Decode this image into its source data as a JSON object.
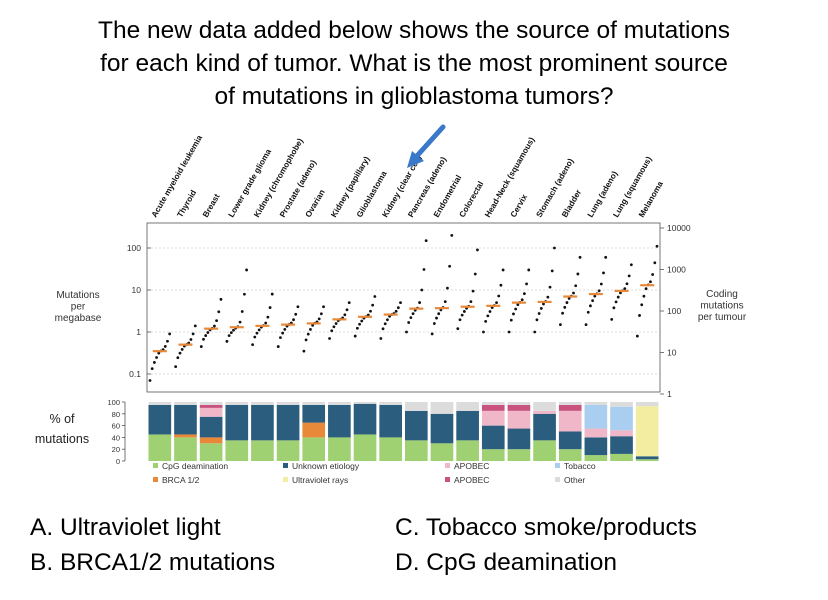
{
  "question": {
    "lines": [
      "The new data added below shows the source of mutations",
      "for each kind of tumor. What is the most prominent source",
      "of mutations in glioblastoma tumors?"
    ]
  },
  "answers": {
    "a": "A.  Ultraviolet light",
    "b": "B.  BRCA1/2 mutations",
    "c": "C. Tobacco smoke/products",
    "d": "D. CpG deamination"
  },
  "chart_data": [
    {
      "type": "scatter",
      "title": "",
      "ylabel": "Mutations per megabase",
      "ylabel_lines": [
        "Mutations",
        "per",
        "megabase"
      ],
      "y2label_lines": [
        "Coding",
        "mutations",
        "per tumour"
      ],
      "yscale": "log",
      "ylim": [
        0.05,
        250
      ],
      "yticks": [
        "100",
        "10",
        "1",
        "0.1"
      ],
      "y2ticks": [
        "10000",
        "1000",
        "100",
        "10",
        "1"
      ],
      "grid": true,
      "highlight": {
        "category": "Glioblastoma",
        "marker": "blue arrow"
      },
      "categories": [
        "Acute myeloid leukemia",
        "Thyroid",
        "Breast",
        "Lower grade glioma",
        "Kidney (chromophobe)",
        "Prostate (adeno)",
        "Ovarian",
        "Kidney (papillary)",
        "Glioblastoma",
        "Kidney (clear cell)",
        "Pancreas (adeno)",
        "Endometrial",
        "Colorectal",
        "Head-Neck (squamous)",
        "Cervix",
        "Stomach (adeno)",
        "Bladder",
        "Lung (adeno)",
        "Lung (squamous)",
        "Melanoma"
      ],
      "medians": [
        0.35,
        0.5,
        1.2,
        1.3,
        1.4,
        1.5,
        1.6,
        2.0,
        2.3,
        2.6,
        3.6,
        3.7,
        4.0,
        4.2,
        5.0,
        5.2,
        7.0,
        8.0,
        9.5,
        13.0
      ],
      "ranges": [
        [
          0.07,
          0.9
        ],
        [
          0.15,
          1.4
        ],
        [
          0.45,
          6
        ],
        [
          0.6,
          30
        ],
        [
          0.5,
          8
        ],
        [
          0.45,
          4
        ],
        [
          0.35,
          4
        ],
        [
          0.7,
          5
        ],
        [
          0.8,
          7
        ],
        [
          0.7,
          5
        ],
        [
          1.0,
          150
        ],
        [
          0.9,
          200
        ],
        [
          1.2,
          90
        ],
        [
          1.0,
          30
        ],
        [
          1.0,
          30
        ],
        [
          1.0,
          100
        ],
        [
          1.5,
          60
        ],
        [
          1.5,
          60
        ],
        [
          2.0,
          40
        ],
        [
          0.8,
          110
        ]
      ]
    },
    {
      "type": "bar",
      "title": "",
      "ylabel_lines": [
        "% of",
        "mutations"
      ],
      "yticks": [
        "100",
        "80",
        "60",
        "40",
        "20",
        "0"
      ],
      "ylim": [
        0,
        100
      ],
      "legend": [
        {
          "label": "CpG deamination",
          "color": "#9fd072"
        },
        {
          "label": "BRCA 1/2",
          "color": "#e8893a"
        },
        {
          "label": "Unknown etiology",
          "color": "#2b5d7e"
        },
        {
          "label": "Ultraviolet rays",
          "color": "#f2eda0"
        },
        {
          "label": "APOBEC",
          "color": "#f0b7c8"
        },
        {
          "label": "APOBEC",
          "color": "#c9537e"
        },
        {
          "label": "Tobacco",
          "color": "#a9cef0"
        },
        {
          "label": "Other",
          "color": "#dcdcdc"
        }
      ],
      "legend_placement": "bottom",
      "series": [
        {
          "name": "CpG deamination",
          "values": [
            45,
            40,
            30,
            35,
            35,
            35,
            40,
            40,
            45,
            40,
            35,
            30,
            35,
            20,
            20,
            35,
            20,
            10,
            12,
            3
          ]
        },
        {
          "name": "BRCA 1/2",
          "values": [
            0,
            5,
            10,
            0,
            0,
            0,
            25,
            0,
            0,
            0,
            0,
            0,
            0,
            0,
            0,
            0,
            0,
            0,
            0,
            0
          ]
        },
        {
          "name": "Unknown etiology",
          "values": [
            50,
            50,
            35,
            60,
            60,
            60,
            30,
            55,
            52,
            55,
            50,
            50,
            50,
            40,
            35,
            45,
            30,
            30,
            30,
            5
          ]
        },
        {
          "name": "Ultraviolet rays",
          "values": [
            0,
            0,
            0,
            0,
            0,
            0,
            0,
            0,
            0,
            0,
            0,
            0,
            0,
            0,
            0,
            0,
            0,
            0,
            0,
            85
          ]
        },
        {
          "name": "APOBEC",
          "values": [
            0,
            0,
            15,
            0,
            0,
            0,
            0,
            0,
            0,
            0,
            0,
            0,
            0,
            25,
            30,
            5,
            35,
            15,
            10,
            0
          ]
        },
        {
          "name": "APOBEC",
          "values": [
            0,
            0,
            5,
            0,
            0,
            0,
            0,
            0,
            0,
            0,
            0,
            0,
            0,
            10,
            10,
            0,
            10,
            0,
            0,
            0
          ]
        },
        {
          "name": "Tobacco",
          "values": [
            0,
            0,
            0,
            0,
            0,
            0,
            0,
            0,
            0,
            0,
            0,
            0,
            0,
            0,
            0,
            0,
            0,
            40,
            40,
            0
          ]
        },
        {
          "name": "Other",
          "values": [
            5,
            5,
            5,
            5,
            5,
            5,
            5,
            5,
            3,
            5,
            15,
            20,
            15,
            5,
            5,
            15,
            5,
            5,
            8,
            7
          ]
        }
      ]
    }
  ]
}
